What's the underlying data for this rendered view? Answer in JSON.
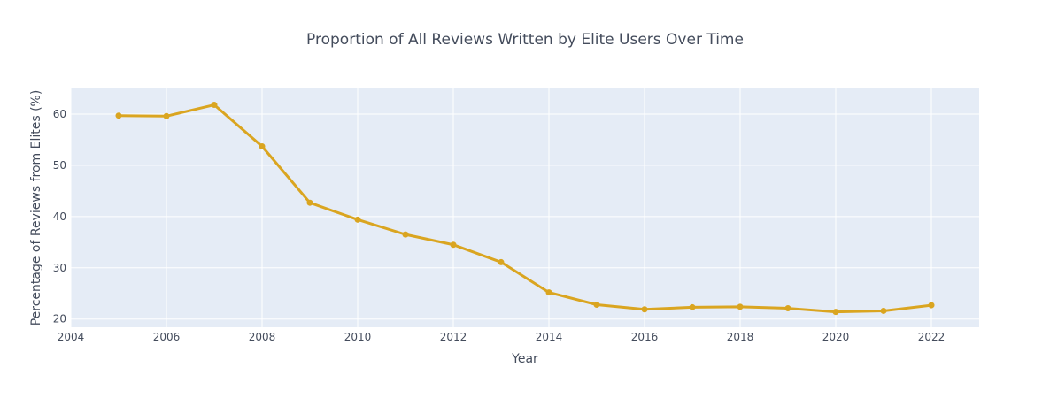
{
  "chart_data": {
    "type": "line",
    "title": "Proportion of All Reviews Written by Elite Users Over Time",
    "xlabel": "Year",
    "ylabel": "Percentage of Reviews from Elites (%)",
    "x": [
      2005,
      2006,
      2007,
      2008,
      2009,
      2010,
      2011,
      2012,
      2013,
      2014,
      2015,
      2016,
      2017,
      2018,
      2019,
      2020,
      2021,
      2022
    ],
    "series": [
      {
        "name": "",
        "values": [
          59.7,
          59.6,
          61.8,
          53.7,
          42.7,
          39.4,
          36.5,
          34.5,
          31.1,
          25.2,
          22.8,
          21.9,
          22.3,
          22.4,
          22.1,
          21.4,
          21.6,
          22.7
        ],
        "color": "#DAA520"
      }
    ],
    "xlim": [
      2004,
      2023
    ],
    "ylim": [
      18.4,
      65.0
    ],
    "xticks": [
      2004,
      2006,
      2008,
      2010,
      2012,
      2014,
      2016,
      2018,
      2020,
      2022
    ],
    "yticks": [
      20,
      30,
      40,
      50,
      60
    ],
    "grid": true,
    "plot_bgcolor": "#E5ECF6",
    "gridcolor": "#FFFFFF"
  }
}
